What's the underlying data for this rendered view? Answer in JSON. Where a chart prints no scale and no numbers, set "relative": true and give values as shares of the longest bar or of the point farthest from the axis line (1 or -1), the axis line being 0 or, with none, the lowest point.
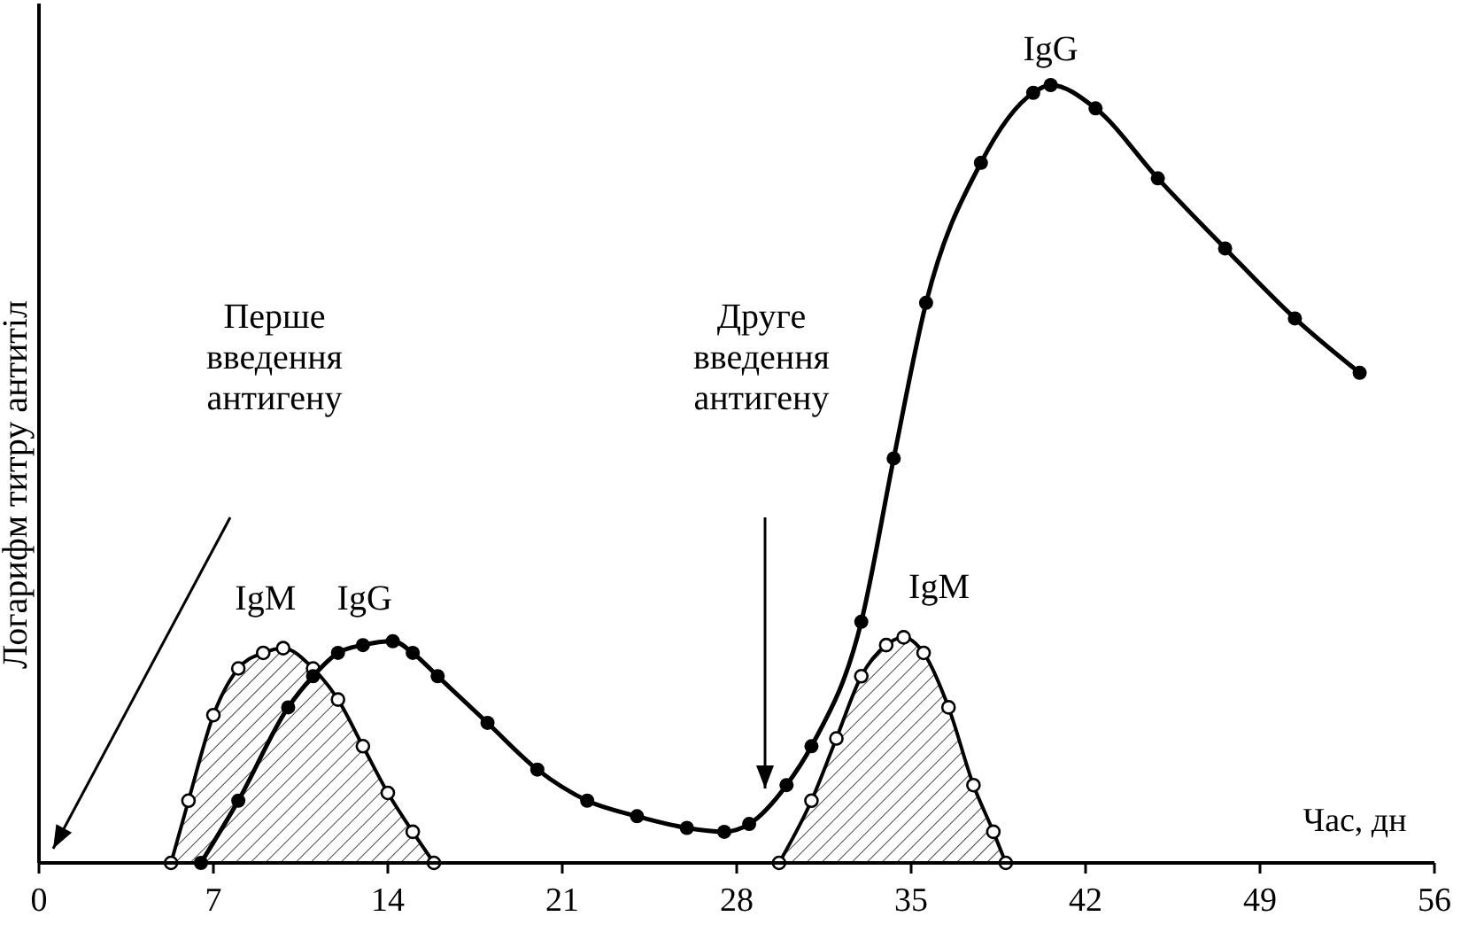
{
  "chart_data": {
    "type": "line",
    "relative": true,
    "xlabel": "Час, дн",
    "ylabel": "Логарифм титру антитіл",
    "xlim": [
      0,
      56
    ],
    "xticks": [
      0,
      7,
      14,
      21,
      28,
      35,
      42,
      49,
      56
    ],
    "marker": "circle",
    "line_style": "solid",
    "series": [
      {
        "name": "IgM",
        "type": "area",
        "color": "#000000",
        "x": [
          5.3,
          6,
          7,
          8,
          9,
          9.8,
          11,
          12,
          13,
          14,
          15,
          15.85
        ],
        "values": [
          0,
          0.08,
          0.19,
          0.25,
          0.27,
          0.276,
          0.25,
          0.21,
          0.15,
          0.09,
          0.04,
          0
        ]
      },
      {
        "name": "IgG",
        "color": "#000000",
        "x": [
          6.5,
          8,
          10,
          11,
          12,
          13,
          14.2,
          15,
          16,
          18,
          20,
          22,
          24,
          26,
          27.5,
          28.5,
          30,
          31,
          33,
          34.3,
          35.6,
          37.8,
          39.9,
          40.6,
          42.4,
          44.9,
          47.6,
          50.4,
          53
        ],
        "values": [
          0,
          0.08,
          0.2,
          0.24,
          0.27,
          0.28,
          0.285,
          0.27,
          0.24,
          0.18,
          0.12,
          0.08,
          0.06,
          0.045,
          0.04,
          0.05,
          0.1,
          0.15,
          0.31,
          0.52,
          0.72,
          0.9,
          0.99,
          1,
          0.97,
          0.88,
          0.79,
          0.7,
          0.63
        ]
      },
      {
        "name": "IgM",
        "type": "area",
        "color": "#000000",
        "x": [
          29.7,
          31,
          32,
          33,
          34,
          34.7,
          35.5,
          36.5,
          37.5,
          38.3,
          38.8
        ],
        "values": [
          0,
          0.08,
          0.16,
          0.24,
          0.28,
          0.29,
          0.27,
          0.2,
          0.1,
          0.04,
          0
        ]
      }
    ],
    "annotations": [
      {
        "text": "IgG",
        "x": 12,
        "y": 0.285
      },
      "Перше введення антигену",
      "Друге введення антигену"
    ]
  }
}
